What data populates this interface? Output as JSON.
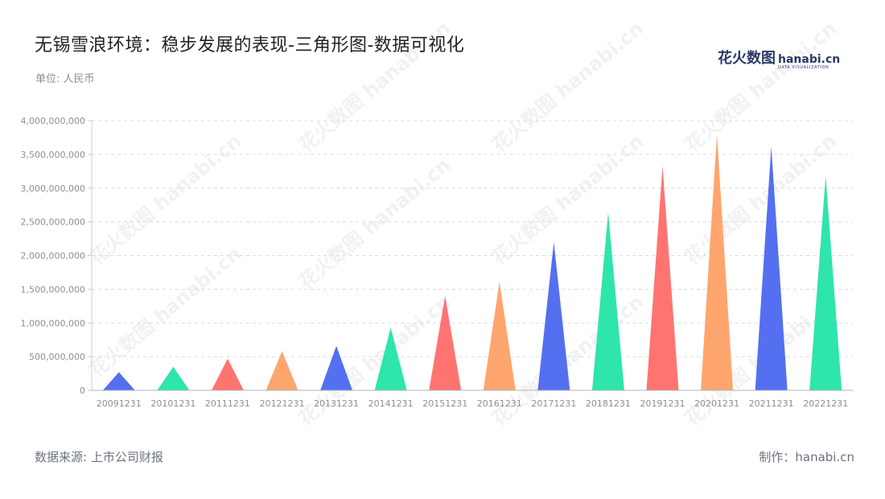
{
  "header": {
    "title": "无锡雪浪环境：稳步发展的表现-三角形图-数据可视化",
    "unit": "单位: 人民币"
  },
  "logo": {
    "cn": "花火数图",
    "en": "hanabi.cn",
    "sub": "DATA VISUALIZATION"
  },
  "footer": {
    "source": "数据来源: 上市公司财报",
    "maker": "制作：hanabi.cn"
  },
  "watermark": "花火数图 hanabi.cn",
  "colors": [
    "#5470f0",
    "#2ee5ac",
    "#ff7471",
    "#ffa56e"
  ],
  "chart_data": {
    "type": "bar",
    "shape": "triangle",
    "categories": [
      "20091231",
      "20101231",
      "20111231",
      "20121231",
      "20131231",
      "20141231",
      "20151231",
      "20161231",
      "20171231",
      "20181231",
      "20191231",
      "20201231",
      "20211231",
      "20221231"
    ],
    "values": [
      270000000,
      350000000,
      470000000,
      580000000,
      660000000,
      930000000,
      1400000000,
      1610000000,
      2200000000,
      2640000000,
      3330000000,
      3800000000,
      3620000000,
      3180000000
    ],
    "ylim": [
      0,
      4000000000
    ],
    "yticks": [
      "0",
      "500,000,000",
      "1,000,000,000",
      "1,500,000,000",
      "2,000,000,000",
      "2,500,000,000",
      "3,000,000,000",
      "3,500,000,000",
      "4,000,000,000"
    ],
    "grid": true,
    "legend": "none"
  }
}
